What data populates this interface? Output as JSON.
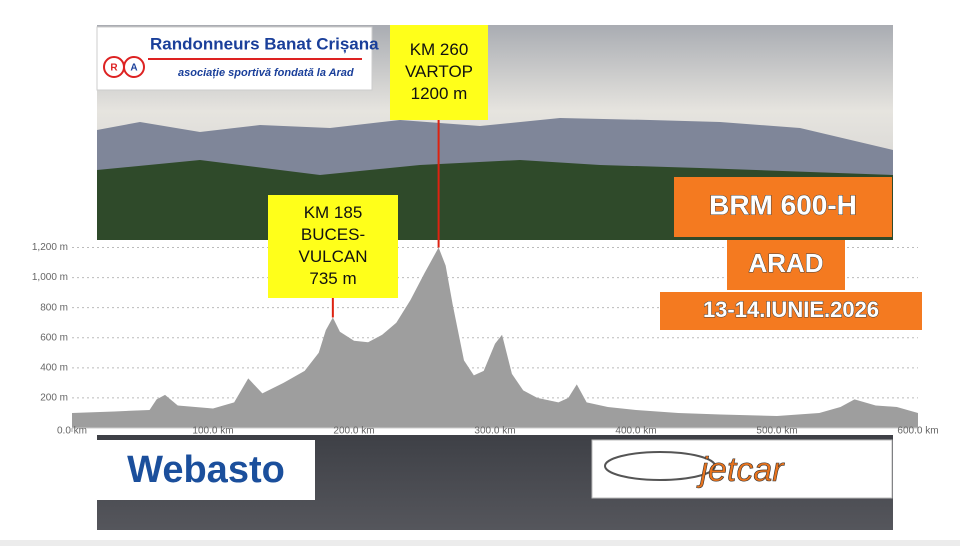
{
  "chart_data": {
    "type": "area",
    "x": [
      0,
      30,
      55,
      60,
      66,
      75,
      100,
      115,
      125,
      135,
      150,
      165,
      175,
      180,
      185,
      190,
      200,
      210,
      220,
      230,
      240,
      250,
      260,
      265,
      270,
      278,
      285,
      292,
      300,
      305,
      312,
      320,
      330,
      345,
      352,
      358,
      365,
      380,
      400,
      430,
      460,
      500,
      530,
      545,
      555,
      570,
      585,
      600
    ],
    "values": [
      100,
      110,
      120,
      190,
      220,
      150,
      130,
      170,
      330,
      230,
      300,
      380,
      500,
      650,
      735,
      640,
      580,
      570,
      620,
      700,
      850,
      1030,
      1200,
      1080,
      820,
      450,
      350,
      380,
      560,
      620,
      360,
      250,
      200,
      170,
      200,
      290,
      170,
      140,
      120,
      100,
      90,
      80,
      100,
      140,
      190,
      150,
      140,
      100
    ],
    "color": "#9e9e9e",
    "xlim": [
      0,
      600
    ],
    "xticks": [
      {
        "value": 0,
        "label": "0.0 km"
      },
      {
        "value": 100,
        "label": "100.0 km"
      },
      {
        "value": 200,
        "label": "200.0 km"
      },
      {
        "value": 300,
        "label": "300.0 km"
      },
      {
        "value": 400,
        "label": "400.0 km"
      },
      {
        "value": 500,
        "label": "500.0 km"
      },
      {
        "value": 600,
        "label": "600.0 km"
      }
    ],
    "ylim": [
      0,
      1250
    ],
    "yticks": [
      {
        "value": 200,
        "label": "200 m"
      },
      {
        "value": 400,
        "label": "400 m"
      },
      {
        "value": 600,
        "label": "600 m"
      },
      {
        "value": 800,
        "label": "800 m"
      },
      {
        "value": 1000,
        "label": "1,000 m"
      },
      {
        "value": 1200,
        "label": "1,200 m"
      }
    ],
    "grid": true,
    "annotations": [
      {
        "x": 185,
        "y": 735,
        "lines": [
          "KM 185",
          "BUCES-",
          "VULCAN",
          "735 m"
        ]
      },
      {
        "x": 260,
        "y": 1200,
        "lines": [
          "KM 260",
          "VARTOP",
          "1200 m"
        ]
      }
    ]
  },
  "page": {
    "club_name": "Randonneurs Banat Crișana",
    "club_subtitle": "asociație sportivă fondată la Arad",
    "logo_letters": [
      "R",
      "A"
    ],
    "event": "BRM 600-H",
    "city": "ARAD",
    "date": "13-14.IUNIE.2026",
    "sponsors": [
      "Webasto",
      "jetcar"
    ]
  }
}
